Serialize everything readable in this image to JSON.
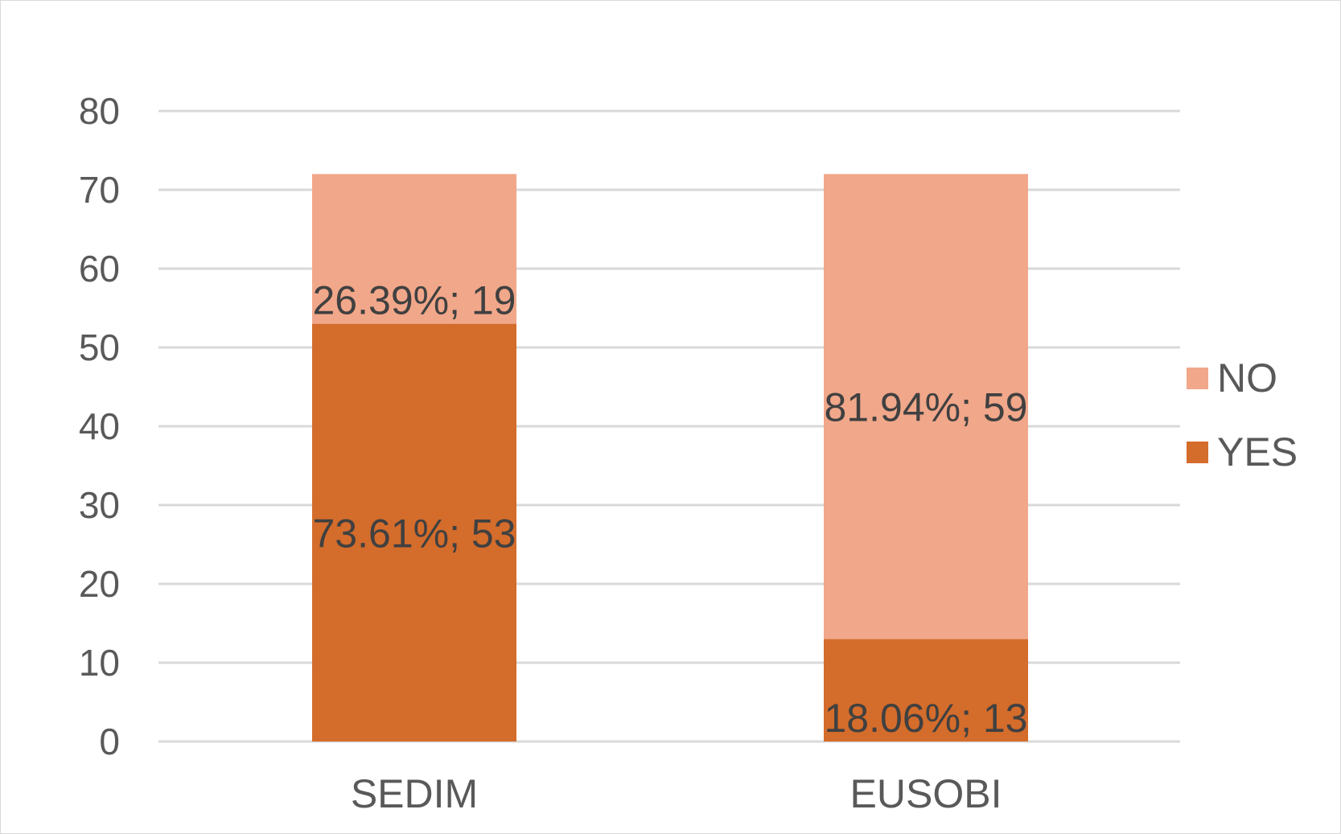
{
  "chart_data": {
    "type": "bar",
    "stacked": true,
    "title": "",
    "xlabel": "",
    "ylabel": "",
    "categories": [
      "SEDIM",
      "EUSOBI"
    ],
    "ylim": [
      0,
      80
    ],
    "yticks": [
      0,
      10,
      20,
      30,
      40,
      50,
      60,
      70,
      80
    ],
    "grid": true,
    "legend_position": "right",
    "series": [
      {
        "name": "YES",
        "color": "#d46c2b",
        "values": [
          53,
          13
        ],
        "labels": [
          "73.61%; 53",
          "18.06%; 13"
        ]
      },
      {
        "name": "NO",
        "color": "#f1a78a",
        "values": [
          19,
          59
        ],
        "labels": [
          "26.39%; 19",
          "81.94%; 59"
        ]
      }
    ],
    "legend": [
      "NO",
      "YES"
    ]
  }
}
